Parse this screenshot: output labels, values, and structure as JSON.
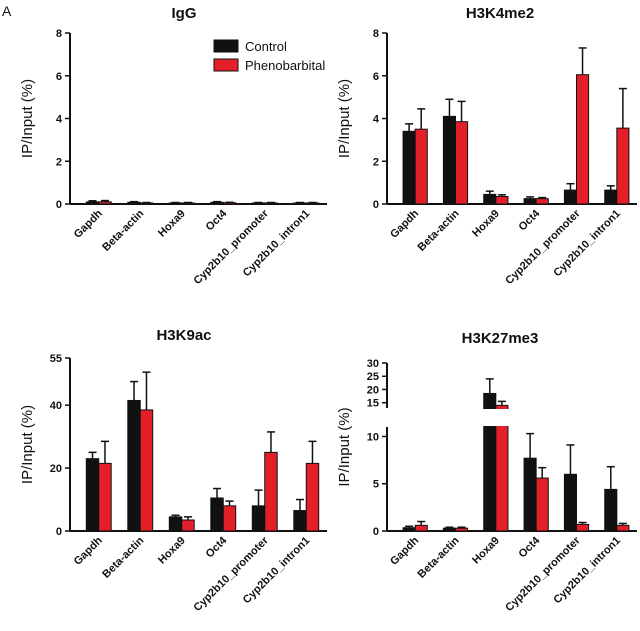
{
  "panel_letter": "A",
  "colors": {
    "control": "#111111",
    "phenobarbital": "#e3202a",
    "axis": "#111111"
  },
  "chart_data": [
    {
      "type": "bar",
      "title": "IgG",
      "ylabel": "IP/Input (%)",
      "ylim": [
        0,
        8
      ],
      "yticks": [
        "0",
        "2",
        "4",
        "6",
        "8"
      ],
      "categories": [
        "Gapdh",
        "Beta-actin",
        "Hoxa9",
        "Oct4",
        "Cyp2b10_promoter",
        "Cyp2b10_intron1"
      ],
      "legend": {
        "placement": "top-center",
        "entries": [
          "Control",
          "Phenobarbital"
        ]
      },
      "series": [
        {
          "name": "Control",
          "values": [
            0.1,
            0.08,
            0.05,
            0.08,
            0.05,
            0.05
          ],
          "errors": [
            0.05,
            0.03,
            0.02,
            0.03,
            0.02,
            0.02
          ]
        },
        {
          "name": "Phenobarbital",
          "values": [
            0.1,
            0.05,
            0.05,
            0.06,
            0.05,
            0.05
          ],
          "errors": [
            0.06,
            0.02,
            0.02,
            0.02,
            0.02,
            0.02
          ]
        }
      ]
    },
    {
      "type": "bar",
      "title": "H3K4me2",
      "ylabel": "IP/Input (%)",
      "ylim": [
        0,
        8
      ],
      "yticks": [
        "0",
        "2",
        "4",
        "6",
        "8"
      ],
      "categories": [
        "Gapdh",
        "Beta-actin",
        "Hoxa9",
        "Oct4",
        "Cyp2b10_promoter",
        "Cyp2b10_intron1"
      ],
      "series": [
        {
          "name": "Control",
          "values": [
            3.4,
            4.1,
            0.45,
            0.25,
            0.65,
            0.65
          ],
          "errors": [
            0.35,
            0.8,
            0.15,
            0.08,
            0.3,
            0.2
          ]
        },
        {
          "name": "Phenobarbital",
          "values": [
            3.5,
            3.85,
            0.35,
            0.25,
            6.05,
            3.55
          ],
          "errors": [
            0.95,
            0.95,
            0.08,
            0.05,
            1.25,
            1.85
          ]
        }
      ]
    },
    {
      "type": "bar",
      "title": "H3K9ac",
      "ylabel": "IP/Input (%)",
      "ylim": [
        0,
        55
      ],
      "yticks": [
        "0",
        "20",
        "40",
        "55"
      ],
      "categories": [
        "Gapdh",
        "Beta-actin",
        "Hoxa9",
        "Oct4",
        "Cyp2b10_promoter",
        "Cyp2b10_intron1"
      ],
      "series": [
        {
          "name": "Control",
          "values": [
            23,
            41.5,
            4.5,
            10.5,
            8,
            6.5
          ],
          "errors": [
            2,
            6,
            0.5,
            3,
            5,
            3.5
          ]
        },
        {
          "name": "Phenobarbital",
          "values": [
            21.5,
            38.5,
            3.5,
            8,
            25,
            21.5
          ],
          "errors": [
            7,
            12,
            1,
            1.5,
            6.5,
            7
          ]
        }
      ]
    },
    {
      "type": "bar",
      "title": "H3K27me3",
      "ylabel": "IP/Input (%)",
      "axis_break": [
        11,
        13
      ],
      "ylim": [
        0,
        30
      ],
      "yticks": [
        "0",
        "5",
        "10",
        "15",
        "20",
        "25",
        "30"
      ],
      "categories": [
        "Gapdh",
        "Beta-actin",
        "Hoxa9",
        "Oct4",
        "Cyp2b10_promoter",
        "Cyp2b10_intron1"
      ],
      "series": [
        {
          "name": "Control",
          "values": [
            0.35,
            0.3,
            18.5,
            7.7,
            6,
            4.4
          ],
          "errors": [
            0.15,
            0.1,
            5.5,
            2.6,
            3.1,
            2.4
          ]
        },
        {
          "name": "Phenobarbital",
          "values": [
            0.6,
            0.3,
            14,
            5.6,
            0.7,
            0.6
          ],
          "errors": [
            0.4,
            0.1,
            1.5,
            1.1,
            0.2,
            0.2
          ]
        }
      ]
    }
  ]
}
